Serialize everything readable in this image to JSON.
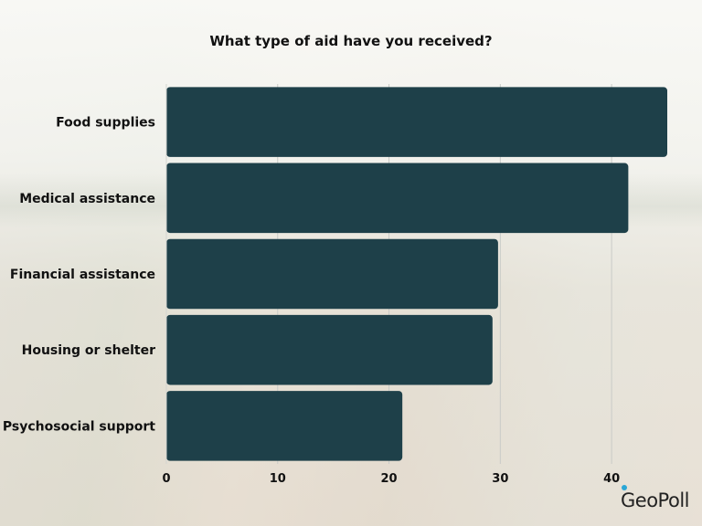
{
  "chart_data": {
    "type": "bar",
    "orientation": "horizontal",
    "title": "What type of aid have you received?",
    "categories": [
      "Food supplies",
      "Medical assistance",
      "Financial assistance",
      "Housing or shelter",
      "Psychosocial support"
    ],
    "values": [
      45,
      41.5,
      29.8,
      29.3,
      21.2
    ],
    "xlim": [
      0,
      45
    ],
    "xticks": [
      0,
      10,
      20,
      30,
      40
    ],
    "xlabel": "",
    "ylabel": "",
    "grid": true,
    "bar_color": "#1e4049"
  },
  "branding": {
    "logo_text": "GeoPoll",
    "accent_color": "#2aa7d6"
  }
}
